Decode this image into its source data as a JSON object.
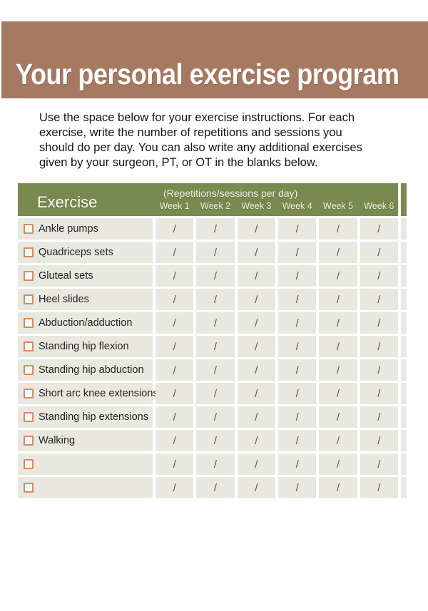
{
  "page": {
    "title": "Your personal exercise program",
    "intro_lines": [
      "Use the space below for your exercise instructions. For each",
      "exercise, write the number of repetitions and sessions you",
      "should do per day. You can also write any additional exercises",
      "given by your surgeon, PT, or OT in the blanks below."
    ]
  },
  "table": {
    "exercise_header": "Exercise",
    "reps_header": "(Repetitions/sessions per day)",
    "week_headers": [
      "Week 1",
      "Week 2",
      "Week 3",
      "Week 4",
      "Week 5",
      "Week 6"
    ],
    "cell_mark": "/",
    "rows": [
      "Ankle pumps",
      "Quadriceps sets",
      "Gluteal sets",
      "Heel slides",
      "Abduction/adduction",
      "Standing hip flexion",
      "Standing hip abduction",
      "Short arc knee extensions",
      "Standing hip extensions",
      "Walking",
      "",
      ""
    ]
  },
  "colors": {
    "banner_brown": "#a67a62",
    "header_green": "#79894f",
    "row_background": "#e8e8e1",
    "checkbox_border": "#d08e69",
    "slash_gray": "#56575b"
  }
}
